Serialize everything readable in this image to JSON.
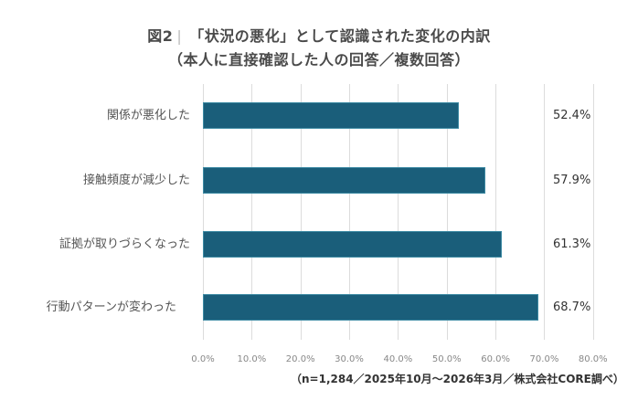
{
  "title": {
    "prefix": "図2",
    "separator": "|",
    "main": "「状況の悪化」として認識された変化の内訳",
    "subtitle": "（本人に直接確認した人の回答／複数回答）"
  },
  "footer": "（n=1,284／2025年10月～2026年3月／株式会社CORE調べ）",
  "colors": {
    "bar": "#1a5e7a",
    "grid": "#dcdcdc",
    "text": "#444444"
  },
  "chart_data": {
    "type": "bar",
    "orientation": "horizontal",
    "title": "図2｜「状況の悪化」として認識された変化の内訳（本人に直接確認した人の回答／複数回答）",
    "categories": [
      "関係が悪化した",
      "接触頻度が減少した",
      "証拠が取りづらくなった",
      "行動パターンが変わった"
    ],
    "values": [
      52.4,
      57.9,
      61.3,
      68.7
    ],
    "value_labels": [
      "52.4%",
      "57.9%",
      "61.3%",
      "68.7%"
    ],
    "xlabel": "",
    "ylabel": "",
    "xlim": [
      0,
      80
    ],
    "x_ticks": [
      "0.0%",
      "10.0%",
      "20.0%",
      "30.0%",
      "40.0%",
      "50.0%",
      "60.0%",
      "70.0%",
      "80.0%"
    ],
    "grid": true,
    "legend": null,
    "note": "（n=1,284／2025年10月～2026年3月／株式会社CORE調べ）"
  }
}
